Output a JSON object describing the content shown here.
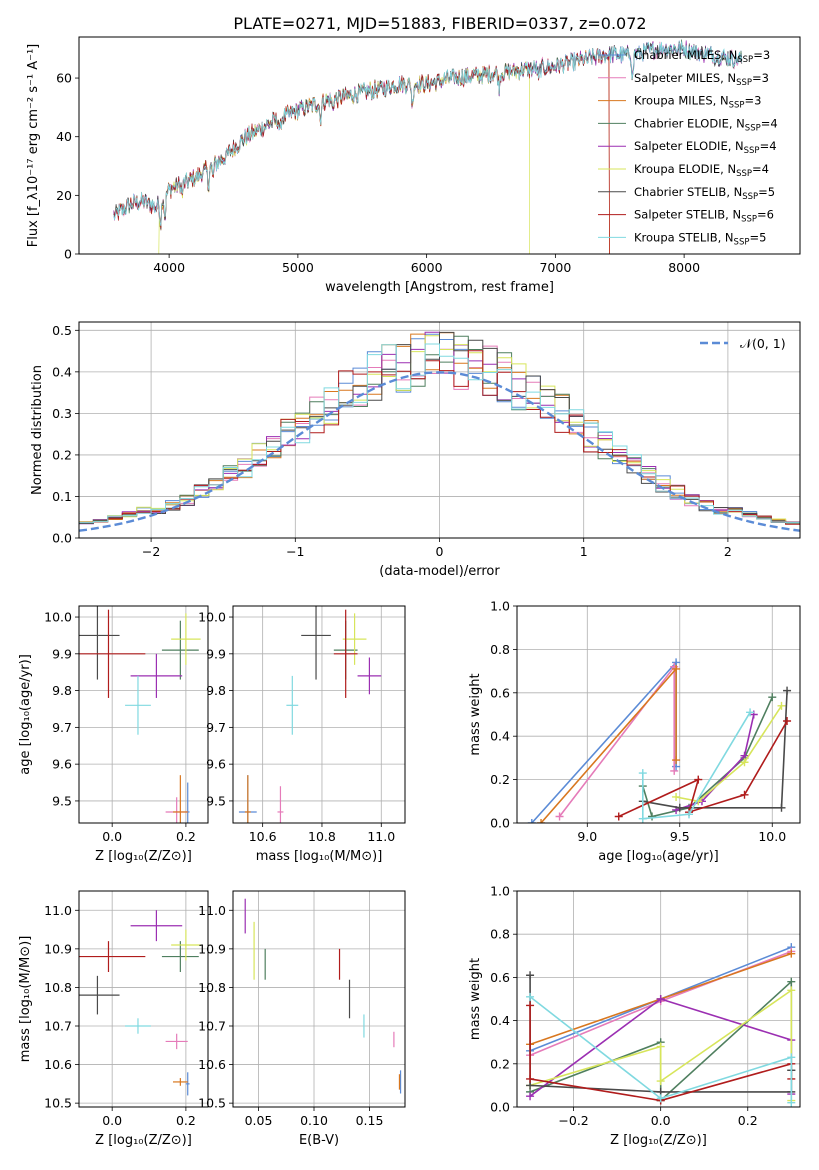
{
  "figure": {
    "title": "PLATE=0271, MJD=51883, FIBERID=0337, z=0.072"
  },
  "colors": {
    "Chabrier MILES": "#5b8bd6",
    "Salpeter MILES": "#e57bb9",
    "Kroupa MILES": "#d8771f",
    "Chabrier ELODIE": "#4f7f5f",
    "Salpeter ELODIE": "#9b2fb2",
    "Kroupa ELODIE": "#d7e55b",
    "Chabrier STELIB": "#4a4a4a",
    "Salpeter STELIB": "#b01c1c",
    "Kroupa STELIB": "#80d9e0"
  },
  "chart_data": [
    {
      "id": "spectrum",
      "type": "line",
      "xlabel": "wavelength [Angstrom, rest frame]",
      "ylabel": "Flux [f_λ10⁻¹⁷ erg cm⁻² s⁻¹ A⁻¹]",
      "xlim": [
        3300,
        8900
      ],
      "ylim": [
        0,
        74
      ],
      "xticks": [
        "4000",
        "5000",
        "6000",
        "7000",
        "8000"
      ],
      "yticks": [
        "0",
        "20",
        "40",
        "60"
      ],
      "legend_placement": "top-right",
      "legend": [
        {
          "name": "Chabrier MILES",
          "n_ssp": 3
        },
        {
          "name": "Salpeter MILES",
          "n_ssp": 3
        },
        {
          "name": "Kroupa MILES",
          "n_ssp": 3
        },
        {
          "name": "Chabrier ELODIE",
          "n_ssp": 4
        },
        {
          "name": "Salpeter ELODIE",
          "n_ssp": 4
        },
        {
          "name": "Kroupa ELODIE",
          "n_ssp": 4
        },
        {
          "name": "Chabrier STELIB",
          "n_ssp": 5
        },
        {
          "name": "Salpeter STELIB",
          "n_ssp": 6
        },
        {
          "name": "Kroupa STELIB",
          "n_ssp": 5
        }
      ],
      "continuum_points": [
        [
          3570,
          13
        ],
        [
          3700,
          17
        ],
        [
          3800,
          18
        ],
        [
          3900,
          16
        ],
        [
          4000,
          22
        ],
        [
          4200,
          26
        ],
        [
          4400,
          32
        ],
        [
          4600,
          40
        ],
        [
          4800,
          45
        ],
        [
          5000,
          49
        ],
        [
          5200,
          52
        ],
        [
          5400,
          54
        ],
        [
          5600,
          56
        ],
        [
          5800,
          58
        ],
        [
          6000,
          58
        ],
        [
          6200,
          60
        ],
        [
          6400,
          61
        ],
        [
          6600,
          62
        ],
        [
          6800,
          63
        ],
        [
          7000,
          64
        ],
        [
          7200,
          66
        ],
        [
          7400,
          68
        ],
        [
          7600,
          68
        ],
        [
          7800,
          70
        ],
        [
          8000,
          70
        ],
        [
          8200,
          68
        ],
        [
          8450,
          66
        ]
      ],
      "model_ranges": {
        "Kroupa ELODIE": [
          3920,
          6800
        ],
        "Salpeter STELIB": [
          3570,
          7420
        ],
        "Kroupa MILES": [
          3570,
          7420
        ]
      }
    },
    {
      "id": "residuals",
      "type": "histogram",
      "xlabel": "(data-model)/error",
      "ylabel": "Normed distribution",
      "xlim": [
        -2.5,
        2.5
      ],
      "ylim": [
        0,
        0.52
      ],
      "xticks": [
        "−2",
        "−1",
        "0",
        "1",
        "2"
      ],
      "yticks": [
        "0.0",
        "0.1",
        "0.2",
        "0.3",
        "0.4",
        "0.5"
      ],
      "legend": "𝒩(0, 1)",
      "legend_placement": "top-right",
      "bin_width": 0.1
    },
    {
      "id": "age_vs_Z",
      "type": "scatter",
      "xlabel": "Z [log₁₀(Z/Z⊙)]",
      "ylabel": "age  [log₁₀(age/yr)]",
      "xlim": [
        -0.09,
        0.26
      ],
      "ylim": [
        9.44,
        10.03
      ],
      "xticks": [
        "0.0",
        "0.2"
      ],
      "yticks": [
        "9.5",
        "9.6",
        "9.7",
        "9.8",
        "9.9",
        "10.0"
      ],
      "points": [
        {
          "series": "Chabrier MILES",
          "x": 0.205,
          "xerr": 0.005,
          "y": 9.47,
          "yerr": 0.08
        },
        {
          "series": "Salpeter MILES",
          "x": 0.175,
          "xerr": 0.03,
          "y": 9.47,
          "yerr": 0.04
        },
        {
          "series": "Kroupa MILES",
          "x": 0.185,
          "xerr": 0.02,
          "y": 9.47,
          "yerr": 0.1
        },
        {
          "series": "Chabrier ELODIE",
          "x": 0.185,
          "xerr": 0.05,
          "y": 9.91,
          "yerr": 0.08
        },
        {
          "series": "Salpeter ELODIE",
          "x": 0.12,
          "xerr": 0.07,
          "y": 9.84,
          "yerr": 0.06
        },
        {
          "series": "Kroupa ELODIE",
          "x": 0.2,
          "xerr": 0.04,
          "y": 9.94,
          "yerr": 0.07
        },
        {
          "series": "Chabrier STELIB",
          "x": -0.04,
          "xerr": 0.06,
          "y": 9.95,
          "yerr": 0.12
        },
        {
          "series": "Salpeter STELIB",
          "x": -0.01,
          "xerr": 0.1,
          "y": 9.9,
          "yerr": 0.12
        },
        {
          "series": "Kroupa STELIB",
          "x": 0.07,
          "xerr": 0.035,
          "y": 9.76,
          "yerr": 0.08
        }
      ]
    },
    {
      "id": "age_vs_mass",
      "type": "scatter",
      "xlabel": "mass [log₁₀(M/M⊙)]",
      "ylabel": "",
      "xlim": [
        10.5,
        11.08
      ],
      "ylim": [
        9.44,
        10.03
      ],
      "xticks": [
        "10.6",
        "10.8",
        "11.0"
      ],
      "yticks": [
        "9.5",
        "9.6",
        "9.7",
        "9.8",
        "9.9",
        "10.0"
      ],
      "points": [
        {
          "series": "Chabrier MILES",
          "x": 10.55,
          "xerr": 0.03,
          "y": 9.47,
          "yerr": 0.1
        },
        {
          "series": "Salpeter MILES",
          "x": 10.66,
          "xerr": 0.01,
          "y": 9.47,
          "yerr": 0.07
        },
        {
          "series": "Kroupa MILES",
          "x": 10.55,
          "xerr": 0.01,
          "y": 9.47,
          "yerr": 0.1
        },
        {
          "series": "Chabrier ELODIE",
          "x": 10.88,
          "xerr": 0.04,
          "y": 9.91,
          "yerr": 0.08
        },
        {
          "series": "Salpeter ELODIE",
          "x": 10.96,
          "xerr": 0.04,
          "y": 9.84,
          "yerr": 0.05
        },
        {
          "series": "Kroupa ELODIE",
          "x": 10.91,
          "xerr": 0.04,
          "y": 9.94,
          "yerr": 0.07
        },
        {
          "series": "Chabrier STELIB",
          "x": 10.78,
          "xerr": 0.05,
          "y": 9.95,
          "yerr": 0.12
        },
        {
          "series": "Salpeter STELIB",
          "x": 10.88,
          "xerr": 0.04,
          "y": 9.9,
          "yerr": 0.12
        },
        {
          "series": "Kroupa STELIB",
          "x": 10.7,
          "xerr": 0.02,
          "y": 9.76,
          "yerr": 0.08
        }
      ]
    },
    {
      "id": "weight_vs_age",
      "type": "line",
      "xlabel": "age  [log₁₀(age/yr)]",
      "ylabel": "mass weight",
      "xlim": [
        8.62,
        10.15
      ],
      "ylim": [
        0,
        1
      ],
      "xticks": [
        "9.0",
        "9.5",
        "10.0"
      ],
      "yticks": [
        "0.0",
        "0.2",
        "0.4",
        "0.6",
        "0.8",
        "1.0"
      ],
      "series": [
        {
          "name": "Chabrier MILES",
          "points": [
            [
              8.7,
              0.0
            ],
            [
              9.48,
              0.74
            ],
            [
              9.48,
              0.26
            ]
          ]
        },
        {
          "name": "Salpeter MILES",
          "points": [
            [
              8.85,
              0.03
            ],
            [
              9.47,
              0.72
            ],
            [
              9.47,
              0.24
            ]
          ]
        },
        {
          "name": "Kroupa MILES",
          "points": [
            [
              8.75,
              0.0
            ],
            [
              9.48,
              0.71
            ],
            [
              9.48,
              0.29
            ]
          ]
        },
        {
          "name": "Chabrier ELODIE",
          "points": [
            [
              9.3,
              0.17
            ],
            [
              9.35,
              0.03
            ],
            [
              9.55,
              0.07
            ],
            [
              9.85,
              0.3
            ],
            [
              10.0,
              0.58
            ]
          ]
        },
        {
          "name": "Salpeter ELODIE",
          "points": [
            [
              9.48,
              0.06
            ],
            [
              9.62,
              0.1
            ],
            [
              9.85,
              0.31
            ],
            [
              9.9,
              0.5
            ]
          ]
        },
        {
          "name": "Kroupa ELODIE",
          "points": [
            [
              9.48,
              0.12
            ],
            [
              9.6,
              0.1
            ],
            [
              9.85,
              0.28
            ],
            [
              10.05,
              0.54
            ]
          ]
        },
        {
          "name": "Chabrier STELIB",
          "points": [
            [
              9.3,
              0.1
            ],
            [
              9.5,
              0.07
            ],
            [
              10.05,
              0.07
            ],
            [
              10.08,
              0.61
            ]
          ]
        },
        {
          "name": "Salpeter STELIB",
          "points": [
            [
              9.17,
              0.03
            ],
            [
              9.6,
              0.2
            ],
            [
              9.55,
              0.05
            ],
            [
              9.85,
              0.13
            ],
            [
              10.08,
              0.47
            ]
          ]
        },
        {
          "name": "Kroupa STELIB",
          "points": [
            [
              9.3,
              0.23
            ],
            [
              9.3,
              0.02
            ],
            [
              9.55,
              0.04
            ],
            [
              9.88,
              0.51
            ]
          ]
        }
      ]
    },
    {
      "id": "mass_vs_Z",
      "type": "scatter",
      "xlabel": "Z [log₁₀(Z/Z⊙)]",
      "ylabel": "mass [log₁₀(M/M⊙)]",
      "xlim": [
        -0.09,
        0.26
      ],
      "ylim": [
        10.49,
        11.05
      ],
      "xticks": [
        "0.0",
        "0.2"
      ],
      "yticks": [
        "10.5",
        "10.6",
        "10.7",
        "10.8",
        "10.9",
        "11.0"
      ],
      "points": [
        {
          "series": "Chabrier MILES",
          "x": 0.205,
          "xerr": 0.005,
          "y": 10.55,
          "yerr": 0.03
        },
        {
          "series": "Salpeter MILES",
          "x": 0.175,
          "xerr": 0.03,
          "y": 10.66,
          "yerr": 0.02
        },
        {
          "series": "Kroupa MILES",
          "x": 0.185,
          "xerr": 0.02,
          "y": 10.555,
          "yerr": 0.01
        },
        {
          "series": "Chabrier ELODIE",
          "x": 0.185,
          "xerr": 0.05,
          "y": 10.88,
          "yerr": 0.04
        },
        {
          "series": "Salpeter ELODIE",
          "x": 0.12,
          "xerr": 0.07,
          "y": 10.96,
          "yerr": 0.04
        },
        {
          "series": "Kroupa ELODIE",
          "x": 0.2,
          "xerr": 0.04,
          "y": 10.91,
          "yerr": 0.04
        },
        {
          "series": "Chabrier STELIB",
          "x": -0.04,
          "xerr": 0.06,
          "y": 10.78,
          "yerr": 0.05
        },
        {
          "series": "Salpeter STELIB",
          "x": -0.01,
          "xerr": 0.1,
          "y": 10.88,
          "yerr": 0.04
        },
        {
          "series": "Kroupa STELIB",
          "x": 0.07,
          "xerr": 0.035,
          "y": 10.7,
          "yerr": 0.02
        }
      ]
    },
    {
      "id": "mass_vs_ebv",
      "type": "scatter",
      "xlabel": "E(B-V)",
      "ylabel": "",
      "xlim": [
        0.027,
        0.182
      ],
      "ylim": [
        10.49,
        11.05
      ],
      "xticks": [
        "0.05",
        "0.10",
        "0.15"
      ],
      "yticks": [
        "10.5",
        "10.6",
        "10.7",
        "10.8",
        "10.9",
        "11.0"
      ],
      "points": [
        {
          "series": "Chabrier MILES",
          "x": 0.178,
          "xerr": 0.0,
          "y": 10.555,
          "yerr": 0.03
        },
        {
          "series": "Salpeter MILES",
          "x": 0.172,
          "xerr": 0.0,
          "y": 10.665,
          "yerr": 0.02
        },
        {
          "series": "Kroupa MILES",
          "x": 0.177,
          "xerr": 0.0,
          "y": 10.555,
          "yerr": 0.02
        },
        {
          "series": "Chabrier ELODIE",
          "x": 0.056,
          "xerr": 0.0,
          "y": 10.86,
          "yerr": 0.04
        },
        {
          "series": "Salpeter ELODIE",
          "x": 0.038,
          "xerr": 0.0,
          "y": 10.985,
          "yerr": 0.045
        },
        {
          "series": "Kroupa ELODIE",
          "x": 0.046,
          "xerr": 0.0,
          "y": 10.895,
          "yerr": 0.075
        },
        {
          "series": "Chabrier STELIB",
          "x": 0.132,
          "xerr": 0.0,
          "y": 10.77,
          "yerr": 0.05
        },
        {
          "series": "Salpeter STELIB",
          "x": 0.123,
          "xerr": 0.0,
          "y": 10.86,
          "yerr": 0.04
        },
        {
          "series": "Kroupa STELIB",
          "x": 0.145,
          "xerr": 0.0,
          "y": 10.7,
          "yerr": 0.03
        }
      ]
    },
    {
      "id": "weight_vs_Z",
      "type": "line",
      "xlabel": "Z [log₁₀(Z/Z⊙)]",
      "ylabel": "mass weight",
      "xlim": [
        -0.33,
        0.32
      ],
      "ylim": [
        0,
        1
      ],
      "xticks": [
        "−0.2",
        "0.0",
        "0.2"
      ],
      "yticks": [
        "0.0",
        "0.2",
        "0.4",
        "0.6",
        "0.8",
        "1.0"
      ],
      "series": [
        {
          "name": "Chabrier MILES",
          "points": [
            [
              -0.3,
              0.26
            ],
            [
              0.0,
              0.5
            ],
            [
              0.3,
              0.74
            ]
          ]
        },
        {
          "name": "Salpeter MILES",
          "points": [
            [
              -0.3,
              0.24
            ],
            [
              0.0,
              0.49
            ],
            [
              0.3,
              0.72
            ]
          ]
        },
        {
          "name": "Kroupa MILES",
          "points": [
            [
              -0.3,
              0.29
            ],
            [
              0.0,
              0.5
            ],
            [
              0.3,
              0.71
            ]
          ]
        },
        {
          "name": "Chabrier ELODIE",
          "points": [
            [
              -0.3,
              0.07
            ],
            [
              0.0,
              0.3
            ],
            [
              0.0,
              0.03
            ],
            [
              0.3,
              0.58
            ],
            [
              0.3,
              0.17
            ]
          ]
        },
        {
          "name": "Salpeter ELODIE",
          "points": [
            [
              -0.3,
              0.05
            ],
            [
              0.0,
              0.5
            ],
            [
              0.3,
              0.31
            ],
            [
              0.3,
              0.06
            ]
          ]
        },
        {
          "name": "Kroupa ELODIE",
          "points": [
            [
              -0.3,
              0.1
            ],
            [
              0.0,
              0.28
            ],
            [
              0.0,
              0.12
            ],
            [
              0.3,
              0.54
            ],
            [
              0.3,
              0.03
            ]
          ]
        },
        {
          "name": "Chabrier STELIB",
          "points": [
            [
              -0.3,
              0.61
            ],
            [
              -0.3,
              0.1
            ],
            [
              0.0,
              0.07
            ],
            [
              0.3,
              0.07
            ],
            [
              0.3,
              0.17
            ]
          ]
        },
        {
          "name": "Salpeter STELIB",
          "points": [
            [
              -0.3,
              0.47
            ],
            [
              -0.3,
              0.13
            ],
            [
              0.0,
              0.03
            ],
            [
              0.3,
              0.2
            ],
            [
              0.3,
              0.13
            ]
          ]
        },
        {
          "name": "Kroupa STELIB",
          "points": [
            [
              -0.3,
              0.51
            ],
            [
              0.0,
              0.04
            ],
            [
              0.3,
              0.23
            ],
            [
              0.3,
              0.02
            ]
          ]
        }
      ]
    }
  ]
}
